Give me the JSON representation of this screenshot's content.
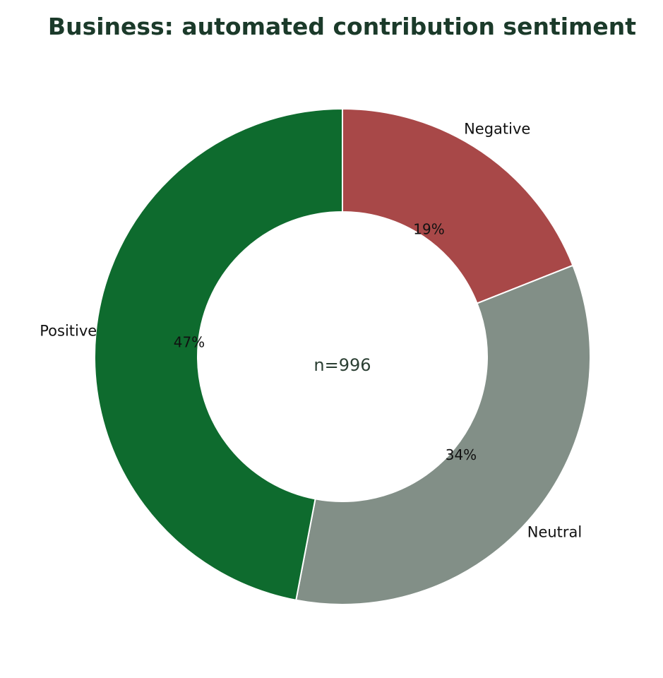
{
  "chart_data": {
    "type": "pie",
    "title": "Business: automated contribution sentiment",
    "center_label": "n=996",
    "labels": [
      "Negative",
      "Neutral",
      "Positive"
    ],
    "values": [
      19,
      34,
      47
    ],
    "value_labels": [
      "19%",
      "34%",
      "47%"
    ],
    "colors": [
      "#a84848",
      "#828f87",
      "#0e6b2e"
    ],
    "start_angle": "12 o'clock",
    "direction": "clockwise"
  }
}
